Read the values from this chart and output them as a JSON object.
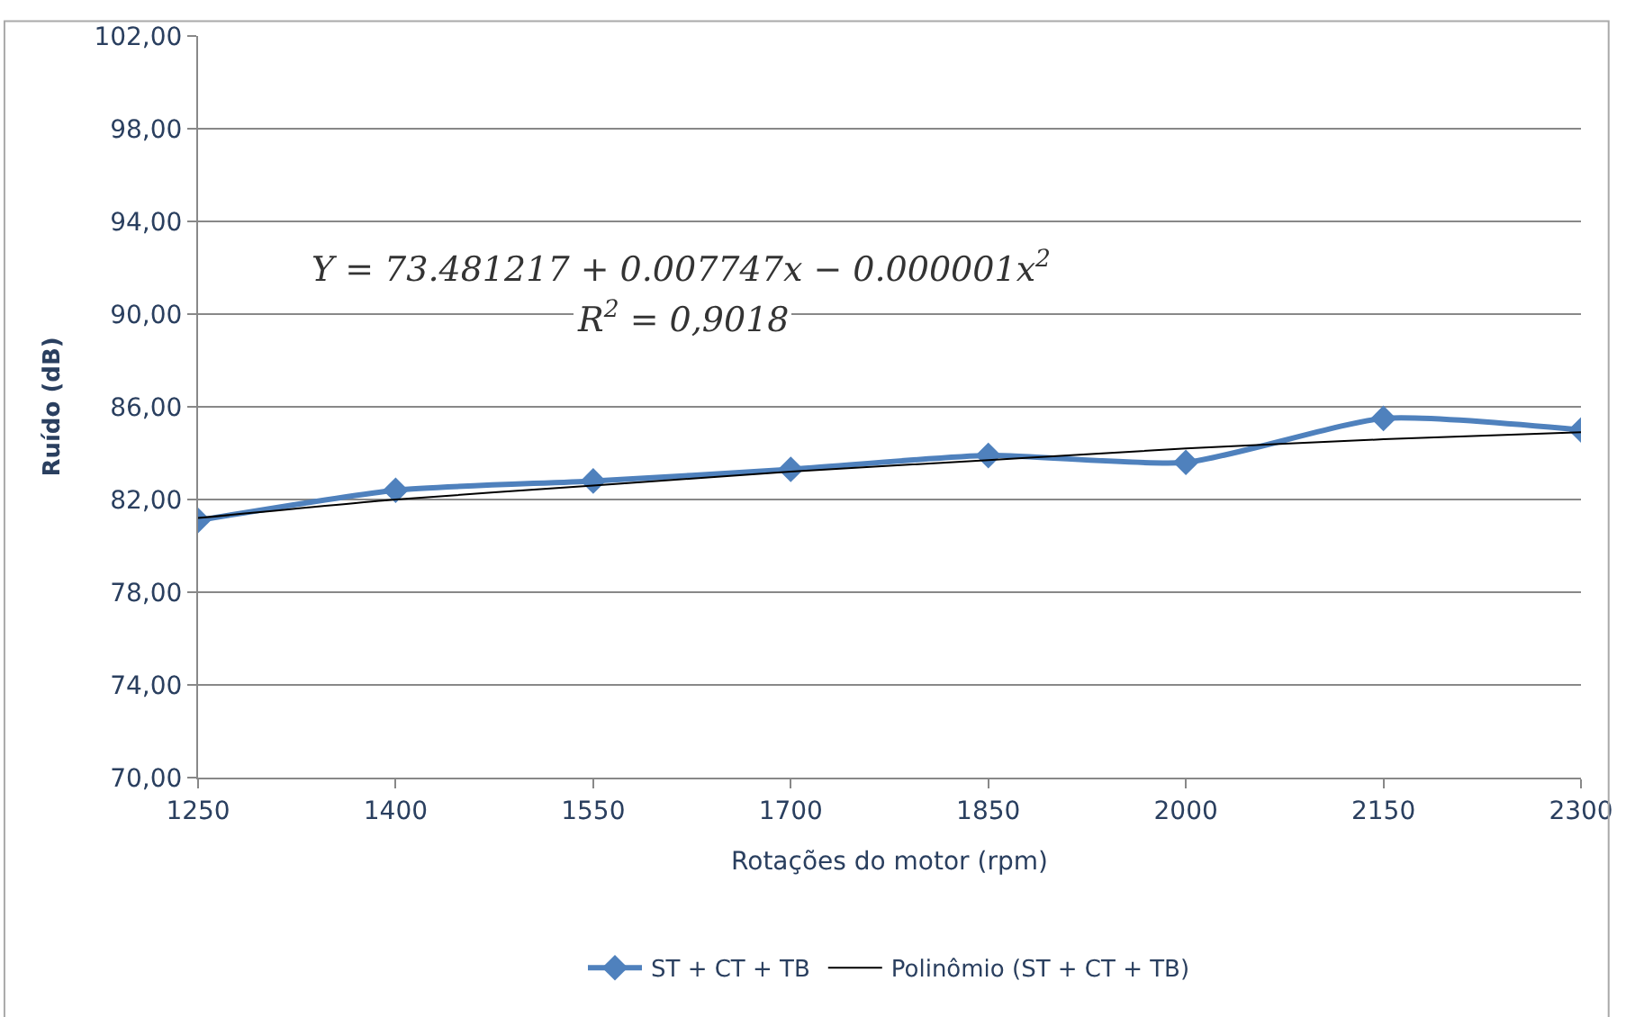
{
  "chart_data": {
    "type": "line",
    "xlabel": "Rotações do motor (rpm)",
    "ylabel": "Ruído (dB)",
    "xlim": [
      1250,
      2300
    ],
    "xticks": [
      1250,
      1400,
      1550,
      1700,
      1850,
      2000,
      2150,
      2300
    ],
    "ylim": [
      70,
      102
    ],
    "yticks": [
      {
        "value": 70,
        "label": "70,00"
      },
      {
        "value": 74,
        "label": "74,00"
      },
      {
        "value": 78,
        "label": "78,00"
      },
      {
        "value": 82,
        "label": "82,00"
      },
      {
        "value": 86,
        "label": "86,00"
      },
      {
        "value": 90,
        "label": "90,00"
      },
      {
        "value": 94,
        "label": "94,00"
      },
      {
        "value": 98,
        "label": "98,00"
      },
      {
        "value": 102,
        "label": "102,00"
      }
    ],
    "grid": "y",
    "legend": "bottom",
    "series": [
      {
        "name": "ST + CT + TB",
        "color": "#4f81bd",
        "marker": "diamond",
        "x": [
          1250,
          1400,
          1550,
          1700,
          1850,
          2000,
          2150,
          2300
        ],
        "values": [
          81.1,
          82.4,
          82.8,
          83.3,
          83.9,
          83.6,
          85.5,
          85.0
        ]
      },
      {
        "name": "Polinômio (ST + CT + TB)",
        "color": "#000000",
        "marker": "none",
        "x": [
          1250,
          1400,
          1550,
          1700,
          1850,
          2000,
          2150,
          2300
        ],
        "values": [
          81.2,
          82.0,
          82.6,
          83.2,
          83.7,
          84.2,
          84.6,
          84.9
        ]
      }
    ],
    "annotations": [
      {
        "text": "Y = 73.481217 + 0.007747x − 0.000001x$^{2}$"
      },
      {
        "text": "R$^{2}$ = 0,9018"
      }
    ]
  }
}
